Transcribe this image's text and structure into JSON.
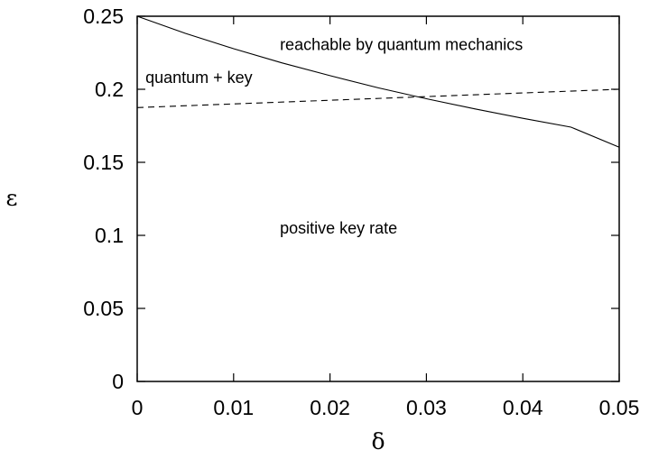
{
  "chart_data": {
    "type": "line",
    "xlabel": "δ",
    "ylabel": "ε",
    "xlim": [
      0,
      0.05
    ],
    "ylim": [
      0,
      0.25
    ],
    "x_ticks": [
      0,
      0.01,
      0.02,
      0.03,
      0.04,
      0.05
    ],
    "x_tick_labels": [
      "0",
      "0.01",
      "0.02",
      "0.03",
      "0.04",
      "0.05"
    ],
    "y_ticks": [
      0,
      0.05,
      0.1,
      0.15,
      0.2,
      0.25
    ],
    "y_tick_labels": [
      "0",
      "0.05",
      "0.1",
      "0.15",
      "0.2",
      "0.25"
    ],
    "grid": false,
    "series": [
      {
        "style": "solid",
        "x": [
          0,
          0.005,
          0.01,
          0.015,
          0.02,
          0.025,
          0.03,
          0.035,
          0.04,
          0.045,
          0.05
        ],
        "y": [
          0.25,
          0.2383,
          0.2278,
          0.2181,
          0.2093,
          0.201,
          0.1935,
          0.1866,
          0.1801,
          0.1741,
          0.1603
        ]
      },
      {
        "style": "dashed",
        "x": [
          0,
          0.05
        ],
        "y": [
          0.1875,
          0.2
        ]
      }
    ],
    "annotations": [
      {
        "text": "reachable by quantum mechanics",
        "x": 0.0148,
        "y": 0.2268
      },
      {
        "text": "quantum + key",
        "x": 0.00085,
        "y": 0.2042
      },
      {
        "text": "positive key rate",
        "x": 0.0148,
        "y": 0.1012
      }
    ]
  }
}
